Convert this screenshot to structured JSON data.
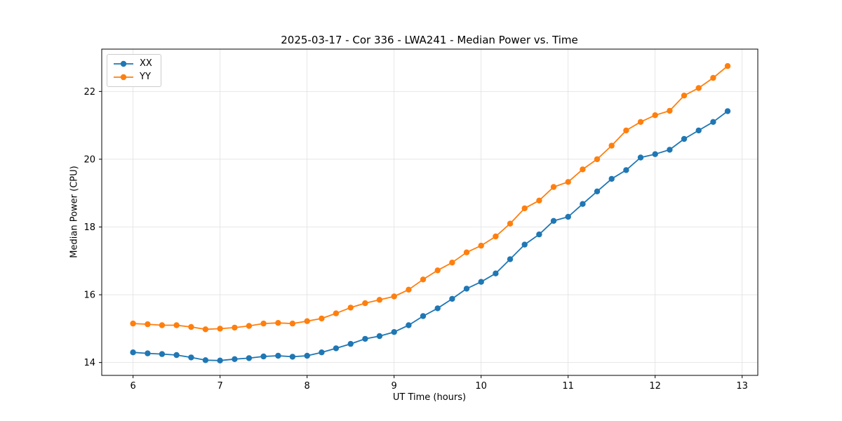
{
  "chart_data": {
    "type": "line",
    "title": "2025-03-17 - Cor 336 - LWA241 - Median Power vs. Time",
    "xlabel": "UT Time (hours)",
    "ylabel": "Median Power (CPU)",
    "xlim": [
      5.64,
      13.18
    ],
    "ylim": [
      13.62,
      23.25
    ],
    "xticks": [
      6,
      7,
      8,
      9,
      10,
      11,
      12,
      13
    ],
    "yticks": [
      14,
      16,
      18,
      20,
      22
    ],
    "grid": true,
    "legend_position": "upper left",
    "marker": "circle",
    "x": [
      6.0,
      6.167,
      6.333,
      6.5,
      6.667,
      6.833,
      7.0,
      7.167,
      7.333,
      7.5,
      7.667,
      7.833,
      8.0,
      8.167,
      8.333,
      8.5,
      8.667,
      8.833,
      9.0,
      9.167,
      9.333,
      9.5,
      9.667,
      9.833,
      10.0,
      10.167,
      10.333,
      10.5,
      10.667,
      10.833,
      11.0,
      11.167,
      11.333,
      11.5,
      11.667,
      11.833,
      12.0,
      12.167,
      12.333,
      12.5,
      12.667,
      12.833
    ],
    "series": [
      {
        "name": "XX",
        "color": "#1f77b4",
        "values": [
          14.3,
          14.27,
          14.25,
          14.22,
          14.15,
          14.07,
          14.06,
          14.1,
          14.13,
          14.18,
          14.2,
          14.17,
          14.2,
          14.3,
          14.42,
          14.55,
          14.7,
          14.78,
          14.9,
          15.1,
          15.37,
          15.6,
          15.88,
          16.18,
          16.38,
          16.63,
          17.05,
          17.48,
          17.78,
          18.18,
          18.3,
          18.68,
          19.05,
          19.42,
          19.68,
          20.05,
          20.15,
          20.28,
          20.6,
          20.85,
          21.1,
          21.42
        ]
      },
      {
        "name": "YY",
        "color": "#ff7f0e",
        "values": [
          15.15,
          15.13,
          15.1,
          15.1,
          15.05,
          14.98,
          15.0,
          15.03,
          15.08,
          15.15,
          15.17,
          15.15,
          15.22,
          15.3,
          15.45,
          15.62,
          15.75,
          15.85,
          15.95,
          16.15,
          16.45,
          16.72,
          16.95,
          17.25,
          17.45,
          17.72,
          18.1,
          18.55,
          18.78,
          19.18,
          19.33,
          19.7,
          20.0,
          20.4,
          20.85,
          21.1,
          21.3,
          21.43,
          21.88,
          22.1,
          22.4,
          22.75
        ]
      }
    ]
  }
}
